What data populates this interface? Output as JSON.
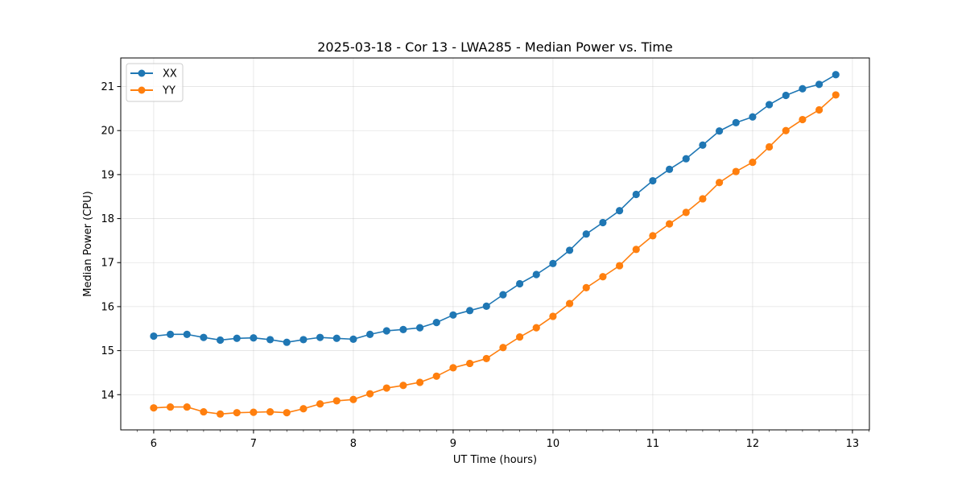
{
  "chart_data": {
    "type": "line",
    "title": "2025-03-18 - Cor 13 - LWA285 - Median Power vs. Time",
    "xlabel": "UT Time (hours)",
    "ylabel": "Median Power (CPU)",
    "xlim": [
      5.67,
      13.17
    ],
    "ylim": [
      13.2,
      21.65
    ],
    "xticks": [
      6,
      7,
      8,
      9,
      10,
      11,
      12,
      13
    ],
    "yticks": [
      14,
      15,
      16,
      17,
      18,
      19,
      20,
      21
    ],
    "xtick_labels": [
      "6",
      "7",
      "8",
      "9",
      "10",
      "11",
      "12",
      "13"
    ],
    "ytick_labels": [
      "14",
      "15",
      "16",
      "17",
      "18",
      "19",
      "20",
      "21"
    ],
    "grid": true,
    "legend_position": "top-left",
    "x": [
      6.0,
      6.1667,
      6.3333,
      6.5,
      6.6667,
      6.8333,
      7.0,
      7.1667,
      7.3333,
      7.5,
      7.6667,
      7.8333,
      8.0,
      8.1667,
      8.3333,
      8.5,
      8.6667,
      8.8333,
      9.0,
      9.1667,
      9.3333,
      9.5,
      9.6667,
      9.8333,
      10.0,
      10.1667,
      10.3333,
      10.5,
      10.6667,
      10.8333,
      11.0,
      11.1667,
      11.3333,
      11.5,
      11.6667,
      11.8333,
      12.0,
      12.1667,
      12.3333,
      12.5,
      12.6667,
      12.8333
    ],
    "series": [
      {
        "name": "XX",
        "color": "#1f77b4",
        "values": [
          15.33,
          15.37,
          15.37,
          15.3,
          15.24,
          15.28,
          15.29,
          15.25,
          15.19,
          15.25,
          15.3,
          15.28,
          15.26,
          15.37,
          15.45,
          15.48,
          15.52,
          15.64,
          15.81,
          15.91,
          16.01,
          16.27,
          16.52,
          16.73,
          16.98,
          17.28,
          17.65,
          17.91,
          18.18,
          18.55,
          18.86,
          19.12,
          19.36,
          19.67,
          19.99,
          20.18,
          20.31,
          20.59,
          20.8,
          20.95,
          21.05,
          21.27
        ]
      },
      {
        "name": "YY",
        "color": "#ff7f0e",
        "values": [
          13.7,
          13.72,
          13.72,
          13.61,
          13.56,
          13.59,
          13.6,
          13.61,
          13.59,
          13.68,
          13.79,
          13.86,
          13.89,
          14.02,
          14.15,
          14.21,
          14.28,
          14.42,
          14.61,
          14.71,
          14.82,
          15.07,
          15.31,
          15.52,
          15.78,
          16.07,
          16.43,
          16.68,
          16.93,
          17.3,
          17.61,
          17.88,
          18.14,
          18.45,
          18.82,
          19.07,
          19.28,
          19.63,
          20.0,
          20.25,
          20.47,
          20.81
        ]
      }
    ]
  }
}
